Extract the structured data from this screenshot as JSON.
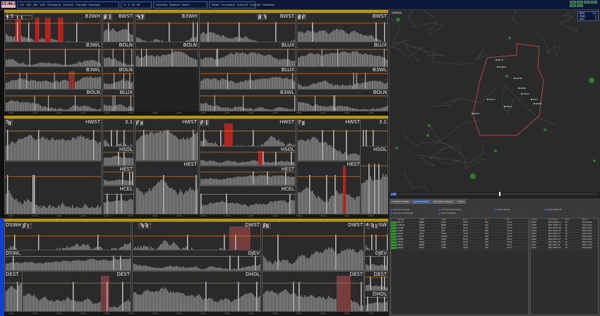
{
  "toolbar": {
    "clock": "15:48:09",
    "group1": [
      "120",
      "180",
      "360",
      "LIVE",
      "Occupancy",
      "Entry/15",
      "Entry/60",
      "Overload"
    ],
    "group2": [
      "-5",
      "3",
      "30",
      "60"
    ],
    "group3_title": "Layout",
    "group3": [
      "Overview",
      "Detailed",
      "Zoom"
    ],
    "group4": [
      "Sector",
      "Occupancy",
      "Entry/15",
      "Entry/60",
      "Overload"
    ]
  },
  "sectors": {
    "top": {
      "row1": [
        "B3WH",
        "B3WL",
        "BOLN",
        "BLUX"
      ],
      "labels": {
        "a": "4.5",
        "a_name": "B3WH",
        "b": "3.1",
        "b_name": "BWST",
        "c": "4.5",
        "c_name": "B3WH",
        "d": "3.1",
        "d_name": "BWST",
        "e": "4.5",
        "e_name": "B3WH",
        "f": "3.1",
        "f_name": "BWST"
      },
      "sub": [
        "B3WL",
        "BOLN",
        "BOLN",
        "BLUX",
        "BLUX",
        "B3WL",
        "BOLN",
        "BLUX",
        "B3WL",
        "BOLN",
        "BLUX"
      ]
    },
    "middle": {
      "labels": {
        "a": "2",
        "a_name": "HWST",
        "b": "3.1",
        "c": "2",
        "c_name": "HWST",
        "d": "3.1",
        "d_name": "HWST",
        "e": "2",
        "e_name": "HWST",
        "f": "3.1",
        "f_name": "HWST"
      },
      "sub": [
        "HSOL",
        "HEST",
        "HCEL",
        "HEST",
        "HSOL",
        "HEST",
        "HCEL",
        "HEST"
      ]
    },
    "bottom": {
      "labels": {
        "a_name": "DSWH",
        "a": "2",
        "b_name": "DWST",
        "b": "3.2",
        "c_name": "DSWH",
        "c": "2",
        "d_name": "DWST",
        "d": "4.1",
        "e": "5",
        "e_name": "DSW"
      },
      "sub": [
        "DSWL",
        "DEST",
        "DEST",
        "DJEV",
        "DHOL",
        "DJEV",
        "DEST",
        "DHOL",
        "DEST"
      ]
    }
  },
  "time_ticks": [
    "1400",
    "1410",
    "1420",
    "1430",
    "1440",
    "1450",
    "1500",
    "1510",
    "1520",
    "1530",
    "1540",
    "1550",
    "1600",
    "1610",
    "1620",
    "1630"
  ],
  "map": {
    "tab": "Settings",
    "legend": [
      {
        "name": "BRU",
        "value": "3.1"
      },
      {
        "name": "HAN",
        "value": "2"
      },
      {
        "name": "DEC",
        "value": "2"
      }
    ],
    "play_label": "LIVE",
    "flights": [
      "BEL7H",
      "HAN321",
      "DLH9K",
      "KLM61",
      "AFR22",
      "EZY4",
      "RYR88",
      "TRA12",
      "BEL9X",
      "SAS51"
    ]
  },
  "bottom_panel": {
    "tabs": [
      "TRAFFIC FILTER",
      "ROUTE FILTER",
      "SECTOR CONTROL",
      "ATFM"
    ],
    "checks": [
      "Include Arrivals",
      "Include Overflights",
      "Include Departures",
      "Show Callsign",
      "Show Route",
      "Show Altitude"
    ],
    "table1_headers": [
      "Callsign",
      "ADEP",
      "ADES",
      "Type",
      "FL",
      "ETO"
    ],
    "table1_rows": [
      [
        "BEL7H",
        "EBBR",
        "LFPG",
        "A320",
        "350",
        "15:52"
      ],
      [
        "HAN321",
        "EDDV",
        "EBBR",
        "B738",
        "240",
        "15:55"
      ],
      [
        "DLH9K",
        "EDDF",
        "EGLL",
        "A321",
        "370",
        "15:58"
      ],
      [
        "KLM61",
        "EHAM",
        "LIRF",
        "B737",
        "380",
        "16:01"
      ],
      [
        "AFR22",
        "LFPG",
        "EDDH",
        "A319",
        "330",
        "16:03"
      ],
      [
        "EZY4",
        "EGKK",
        "LOWW",
        "A320",
        "360",
        "16:05"
      ],
      [
        "RYR88",
        "EBCI",
        "LEMD",
        "B738",
        "390",
        "16:07"
      ],
      [
        "TRA12",
        "EHRD",
        "LPFR",
        "B738",
        "340",
        "16:09"
      ],
      [
        "BEL9X",
        "EBBR",
        "LSZH",
        "A320",
        "300",
        "16:11"
      ],
      [
        "SAS51",
        "EKCH",
        "LFMN",
        "A32N",
        "370",
        "16:13"
      ]
    ],
    "table2_headers": [
      "Sector",
      "Regulation",
      "Rate",
      "Period"
    ],
    "table2_rows": [
      [
        "BWST",
        "REG B3WH 15",
        "28",
        "1500-1600"
      ],
      [
        "HWST",
        "REG HWST 12",
        "30",
        "1530-1630"
      ],
      [
        "DWST",
        "REG DWST 08",
        "26",
        "1600-1700"
      ],
      [
        "B3WL",
        "REG B3WL 03",
        "32",
        "1400-1500"
      ],
      [
        "HEST",
        "REG HEST 07",
        "29",
        "1430-1530"
      ],
      [
        "DEST",
        "REG DEST 11",
        "27",
        "1500-1600"
      ],
      [
        "BOLN",
        "REG BOLN 02",
        "31",
        "1530-1630"
      ],
      [
        "HSOL",
        "REG HSOL 05",
        "30",
        "1600-1700"
      ],
      [
        "DJEV",
        "REG DJEV 04",
        "28",
        "1630-1730"
      ],
      [
        "DHOL",
        "REG DHOL 09",
        "33",
        "1700-1800"
      ]
    ]
  },
  "colors": {
    "topbar": "#0b1838",
    "yellow": "#b8960c",
    "overload": "#c0332f",
    "bar": "#8a8a8a",
    "capacity": "#c8742a",
    "route_box": "#d05050",
    "aircraft": "#50e0b0",
    "blue_strip": "#1040d0"
  }
}
